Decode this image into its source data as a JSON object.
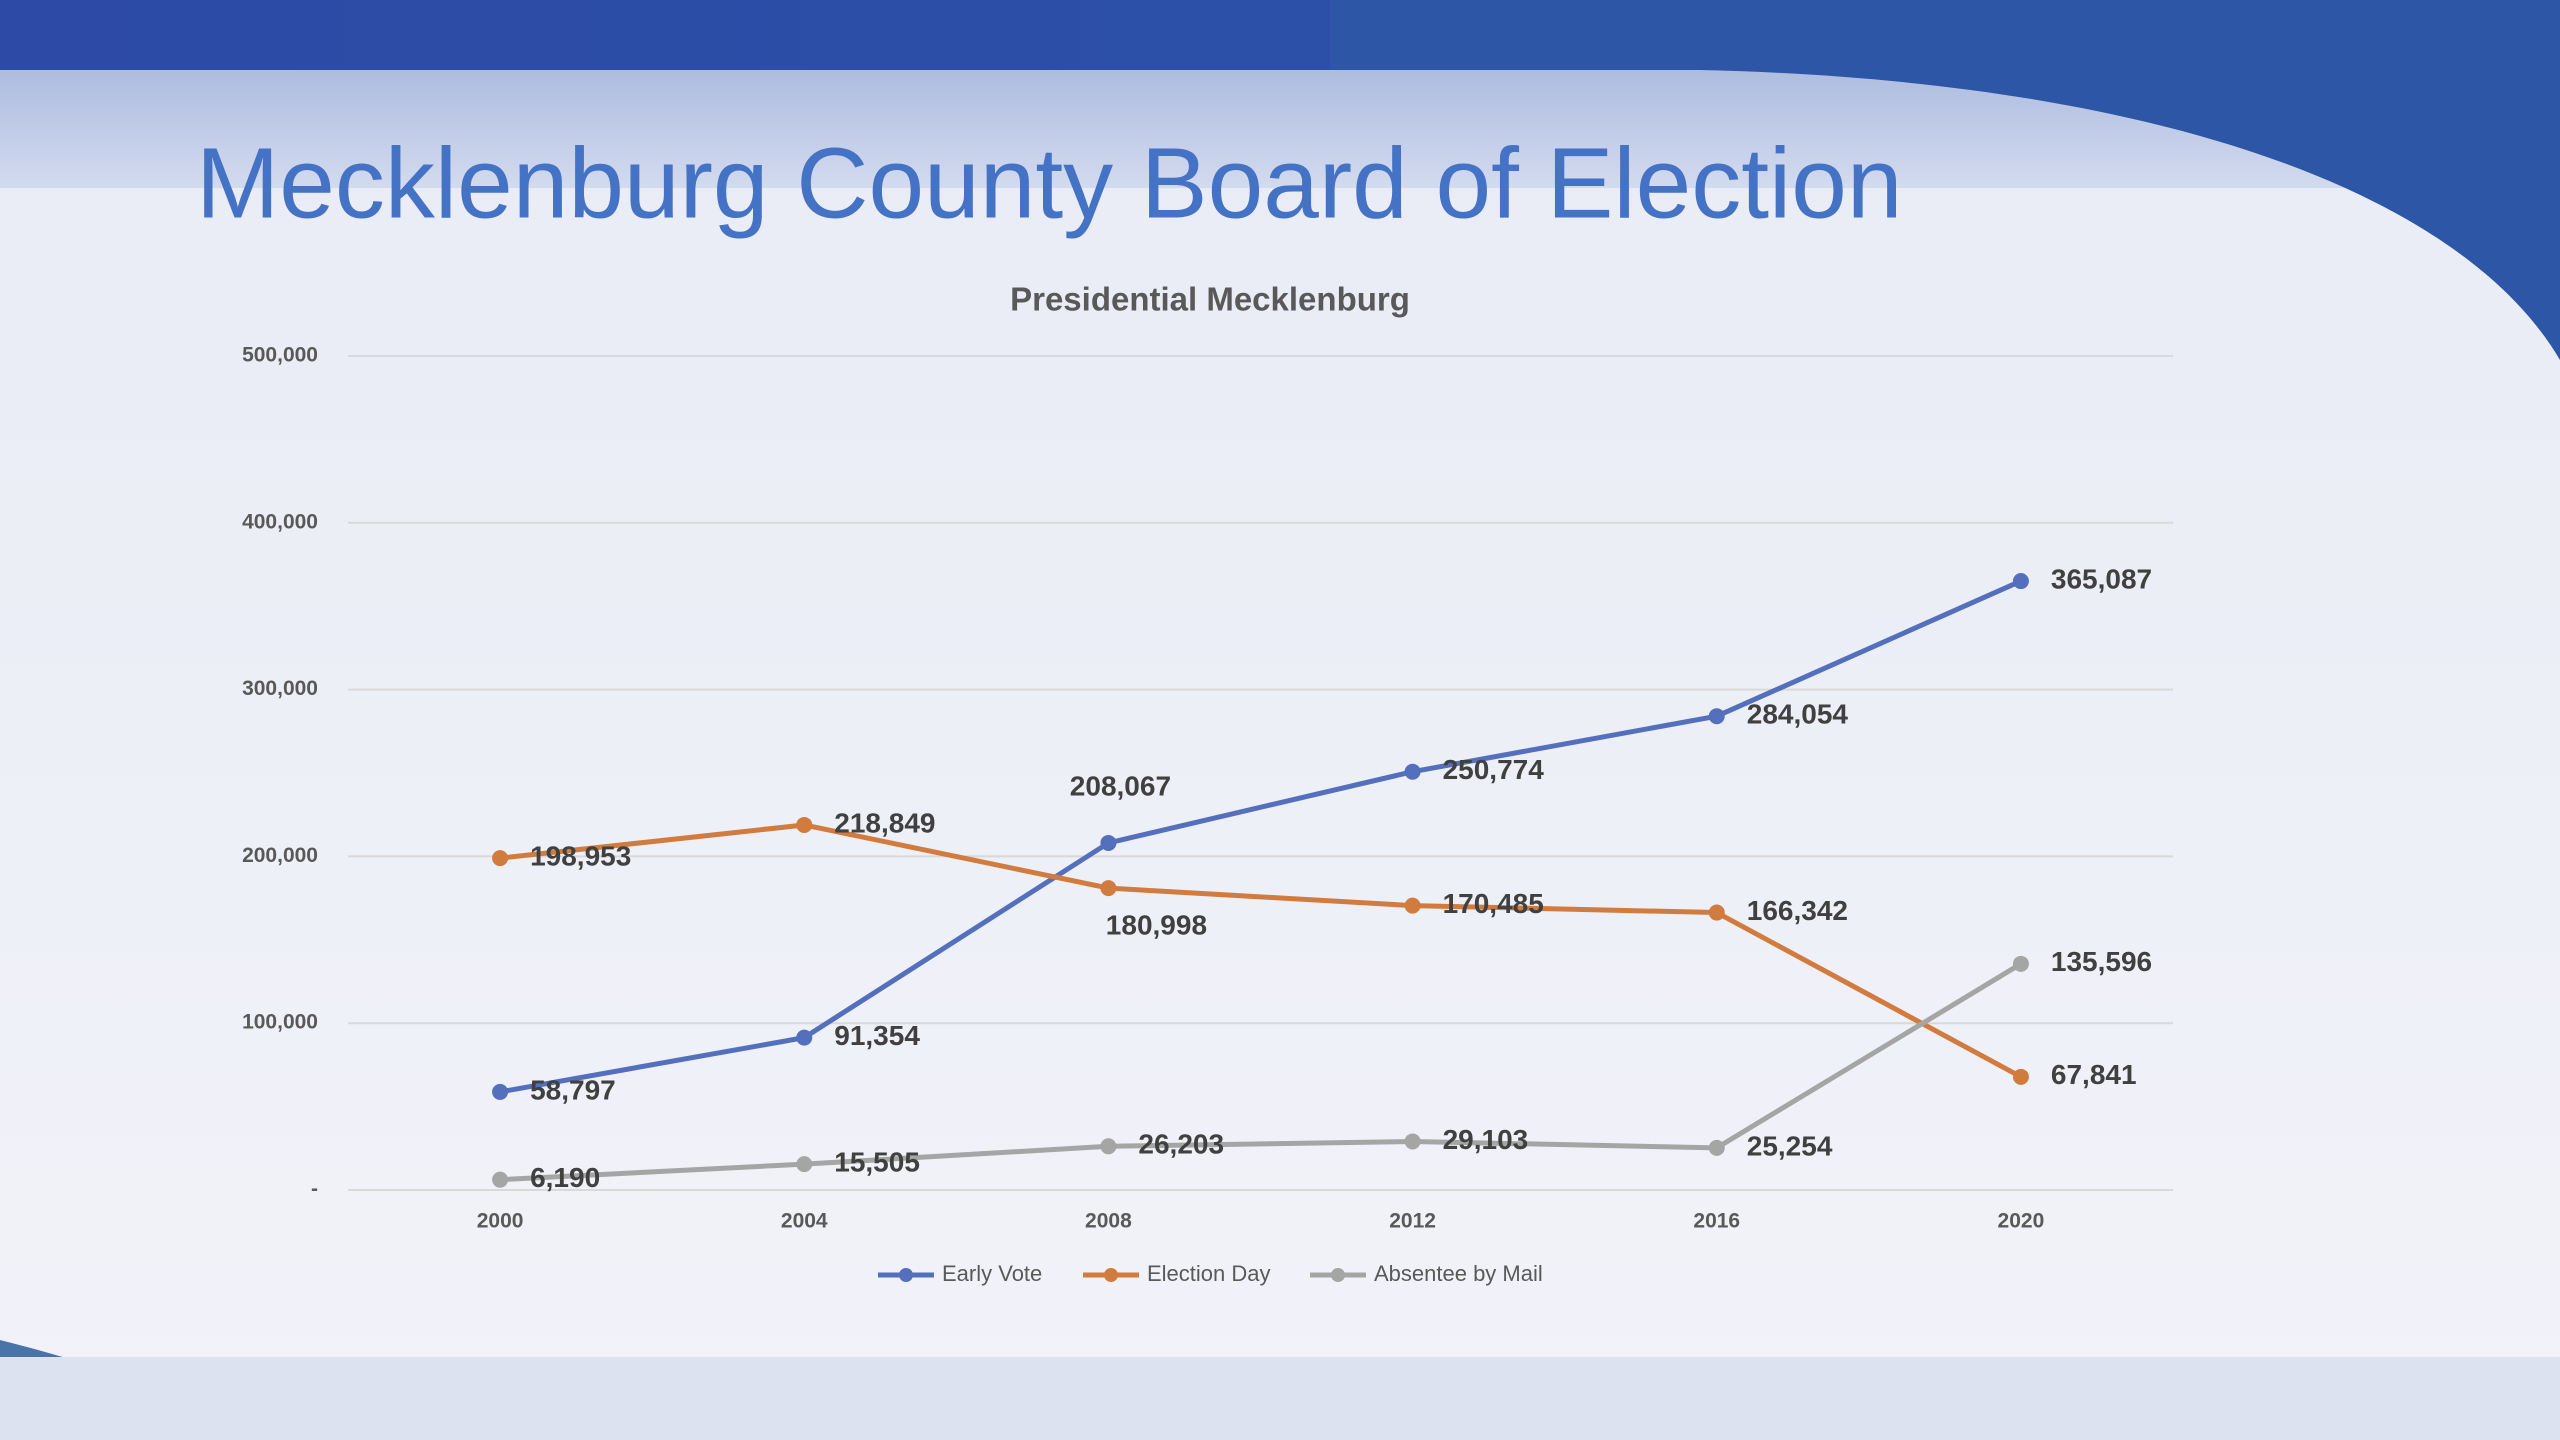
{
  "slide_title": "Mecklenburg County Board of Election",
  "chart_data": {
    "type": "line",
    "title": "Presidential Mecklenburg",
    "categories": [
      "2000",
      "2004",
      "2008",
      "2012",
      "2016",
      "2020"
    ],
    "ylim": [
      0,
      500000
    ],
    "yticks": [
      {
        "value": 0,
        "label": "-"
      },
      {
        "value": 100000,
        "label": "100,000"
      },
      {
        "value": 200000,
        "label": "200,000"
      },
      {
        "value": 300000,
        "label": "300,000"
      },
      {
        "value": 400000,
        "label": "400,000"
      },
      {
        "value": 500000,
        "label": "500,000"
      }
    ],
    "grid": true,
    "legend": "bottom",
    "series": [
      {
        "name": "Early Vote",
        "color": "#5470bd",
        "values": [
          58797,
          91354,
          208067,
          250774,
          284054,
          365087
        ],
        "value_labels": [
          "58,797",
          "91,354",
          "208,067",
          "250,774",
          "284,054",
          "365,087"
        ]
      },
      {
        "name": "Election Day",
        "color": "#d27b3e",
        "values": [
          198953,
          218849,
          180998,
          170485,
          166342,
          67841
        ],
        "value_labels": [
          "198,953",
          "218,849",
          "180,998",
          "170,485",
          "166,342",
          "67,841"
        ]
      },
      {
        "name": "Absentee by Mail",
        "color": "#a5a5a5",
        "values": [
          6190,
          15505,
          26203,
          29103,
          25254,
          135596
        ],
        "value_labels": [
          "6,190",
          "15,505",
          "26,203",
          "29,103",
          "25,254",
          "135,596"
        ]
      }
    ]
  }
}
